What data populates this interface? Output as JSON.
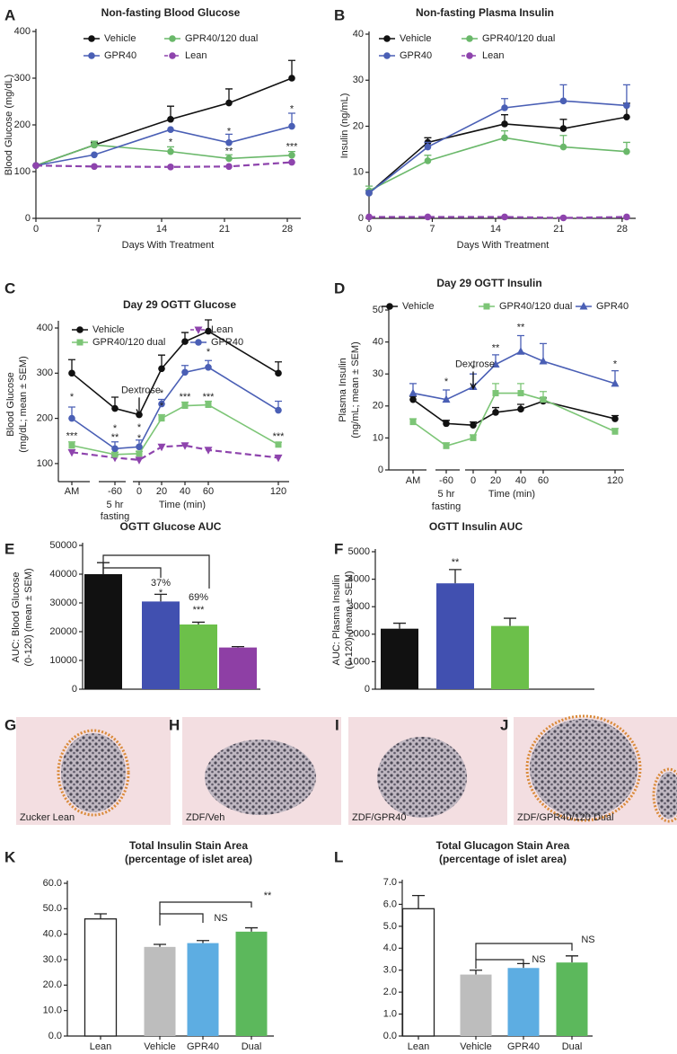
{
  "chart_data": [
    {
      "panel": "A",
      "type": "line",
      "title": "Non-fasting Blood Glucose",
      "xlabel": "Days With Treatment",
      "ylabel": [
        "Blood Glucose (mg/dL)"
      ],
      "xlim": [
        0,
        29.5
      ],
      "xticks": [
        0,
        7,
        14,
        21,
        28
      ],
      "ylim": [
        0,
        400
      ],
      "yticks": [
        0,
        100,
        200,
        300,
        400
      ],
      "x": [
        0,
        6.5,
        15,
        21.5,
        28.5
      ],
      "legend": {
        "position": "top-left",
        "columns": 2
      },
      "series": [
        {
          "name": "Vehicle",
          "color": "#111111",
          "marker": "circle",
          "dashed": false,
          "values": [
            113,
            157,
            212,
            247,
            300
          ],
          "errors": [
            null,
            5,
            28,
            30,
            38
          ]
        },
        {
          "name": "GPR40/120 dual",
          "color": "#6ab86a",
          "marker": "circle",
          "dashed": false,
          "values": [
            113,
            157,
            143,
            128,
            135
          ],
          "errors": [
            null,
            8,
            10,
            8,
            8
          ]
        },
        {
          "name": "GPR40",
          "color": "#4a5fb5",
          "marker": "circle",
          "dashed": false,
          "values": [
            113,
            136,
            190,
            162,
            197
          ],
          "errors": [
            null,
            null,
            null,
            18,
            28
          ]
        },
        {
          "name": "Lean",
          "color": "#8e44ad",
          "marker": "circle",
          "dashed": true,
          "values": [
            113,
            111,
            110,
            111,
            120
          ],
          "errors": [
            null,
            null,
            null,
            null,
            null
          ]
        }
      ],
      "annotations": [
        {
          "text": "*",
          "x": 15,
          "y": 162,
          "color": "#111111"
        },
        {
          "text": "*",
          "x": 21.5,
          "y": 185,
          "color": "#111111"
        },
        {
          "text": "**",
          "x": 21.5,
          "y": 143,
          "color": "#111111"
        },
        {
          "text": "*",
          "x": 28.5,
          "y": 233,
          "color": "#111111"
        },
        {
          "text": "***",
          "x": 28.5,
          "y": 153,
          "color": "#111111"
        }
      ]
    },
    {
      "panel": "B",
      "type": "line",
      "title": "Non-fasting Plasma Insulin",
      "xlabel": "Days With Treatment",
      "ylabel": [
        "Insulin (ng/mL)"
      ],
      "xlim": [
        0,
        29.5
      ],
      "xticks": [
        0,
        7,
        14,
        21,
        28
      ],
      "ylim": [
        0,
        40
      ],
      "yticks": [
        0,
        10,
        20,
        30,
        40
      ],
      "x": [
        0,
        6.5,
        15,
        21.5,
        28.5
      ],
      "legend": {
        "position": "top-left",
        "columns": 2
      },
      "series": [
        {
          "name": "Vehicle",
          "color": "#111111",
          "marker": "circle",
          "dashed": false,
          "values": [
            5.5,
            16.5,
            20.5,
            19.5,
            22
          ],
          "errors": [
            0.5,
            1,
            2,
            2,
            3
          ]
        },
        {
          "name": "GPR40/120 dual",
          "color": "#6ab86a",
          "marker": "circle",
          "dashed": false,
          "values": [
            6,
            12.5,
            17.5,
            15.5,
            14.5
          ],
          "errors": [
            1,
            1.2,
            1.5,
            2.5,
            2
          ]
        },
        {
          "name": "GPR40",
          "color": "#4a5fb5",
          "marker": "circle",
          "dashed": false,
          "values": [
            5.5,
            15.5,
            24,
            25.5,
            24.5
          ],
          "errors": [
            0.5,
            1,
            2,
            3.5,
            4.5
          ]
        },
        {
          "name": "Lean",
          "color": "#8e44ad",
          "marker": "circle",
          "dashed": true,
          "values": [
            0.3,
            0.3,
            0.3,
            0.1,
            0.3
          ],
          "errors": [
            null,
            null,
            null,
            null,
            null
          ]
        }
      ]
    },
    {
      "panel": "C",
      "type": "line",
      "title": "Day 29 OGTT Glucose",
      "xlabel": "Time (min)",
      "break_label": [
        "5 hr",
        "fasting"
      ],
      "ylabel": [
        "Blood Glucose",
        "(mg/dL; mean ± SEM)"
      ],
      "categories": [
        "AM",
        "-60",
        "0",
        "20",
        "40",
        "60",
        "120"
      ],
      "ylim": [
        60,
        410
      ],
      "yticks": [
        100,
        200,
        300,
        400
      ],
      "legend": {
        "position": "top-left",
        "columns": 2
      },
      "series": [
        {
          "name": "Vehicle",
          "color": "#111111",
          "marker": "circle",
          "dashed": false,
          "values": [
            300,
            222,
            208,
            310,
            370,
            393,
            300
          ],
          "errors": [
            30,
            25,
            null,
            30,
            20,
            25,
            25
          ]
        },
        {
          "name": "Lean",
          "color": "#8e44ad",
          "marker": "triangle-down",
          "dashed": true,
          "values": [
            125,
            113,
            108,
            137,
            140,
            130,
            113
          ],
          "errors": [
            null,
            null,
            null,
            null,
            null,
            null,
            null
          ]
        },
        {
          "name": "GPR40/120 dual",
          "color": "#7cc576",
          "marker": "square",
          "dashed": false,
          "values": [
            140,
            120,
            122,
            200,
            228,
            230,
            142
          ],
          "errors": [
            8,
            5,
            5,
            8,
            8,
            8,
            5
          ]
        },
        {
          "name": "GPR40",
          "color": "#4a5fb5",
          "marker": "circle",
          "dashed": false,
          "values": [
            200,
            133,
            137,
            232,
            302,
            313,
            218
          ],
          "errors": [
            25,
            15,
            15,
            10,
            15,
            15,
            20
          ]
        }
      ],
      "annotations": [
        {
          "text": "Dextrose",
          "x": "0",
          "y": 262,
          "color": "#111111",
          "arrow": true
        },
        {
          "text": "*",
          "x": "AM",
          "y": 247,
          "color": "#4a5fb5"
        },
        {
          "text": "***",
          "x": "AM",
          "y": 160,
          "color": "#7cc576"
        },
        {
          "text": "*",
          "x": "-60",
          "y": 177,
          "color": "#4a5fb5"
        },
        {
          "text": "**",
          "x": "-60",
          "y": 157,
          "color": "#7cc576"
        },
        {
          "text": "*",
          "x": "0",
          "y": 179,
          "color": "#4a5fb5"
        },
        {
          "text": "*",
          "x": "0",
          "y": 155,
          "color": "#7cc576"
        },
        {
          "text": "*",
          "x": "20",
          "y": 255,
          "color": "#4a5fb5"
        },
        {
          "text": "*",
          "x": "20",
          "y": 227,
          "color": "#7cc576"
        },
        {
          "text": "***",
          "x": "40",
          "y": 247,
          "color": "#7cc576"
        },
        {
          "text": "*",
          "x": "60",
          "y": 346,
          "color": "#4a5fb5"
        },
        {
          "text": "***",
          "x": "60",
          "y": 247,
          "color": "#7cc576"
        },
        {
          "text": "***",
          "x": "120",
          "y": 159,
          "color": "#7cc576"
        }
      ]
    },
    {
      "panel": "D",
      "type": "line",
      "title": "Day 29 OGTT Insulin",
      "xlabel": "Time (min)",
      "break_label": [
        "5 hr",
        "fasting"
      ],
      "ylabel": [
        "Plasma Insulin",
        "(ng/mL; mean ± SEM)"
      ],
      "categories": [
        "AM",
        "-60",
        "0",
        "20",
        "40",
        "60",
        "120"
      ],
      "ylim": [
        0,
        50
      ],
      "yticks": [
        0,
        10,
        20,
        30,
        40,
        50
      ],
      "legend": {
        "position": "top",
        "columns": 3
      },
      "series": [
        {
          "name": "Vehicle",
          "color": "#111111",
          "marker": "circle",
          "dashed": false,
          "values": [
            22,
            14.5,
            14,
            18,
            19,
            21.5,
            16
          ],
          "errors": [
            1,
            1,
            1,
            1.5,
            1.5,
            1,
            1
          ]
        },
        {
          "name": "GPR40/120 dual",
          "color": "#7cc576",
          "marker": "square",
          "dashed": false,
          "values": [
            15,
            7.5,
            10,
            24,
            24,
            22,
            12
          ],
          "errors": [
            1,
            1,
            1,
            3,
            3,
            2.5,
            1
          ]
        },
        {
          "name": "GPR40",
          "color": "#4a5fb5",
          "marker": "triangle",
          "dashed": false,
          "values": [
            24,
            22,
            26,
            33,
            37,
            34,
            27
          ],
          "errors": [
            3,
            3,
            4,
            3,
            5,
            5.5,
            4
          ]
        }
      ],
      "annotations": [
        {
          "text": "Dextrose",
          "x": "0",
          "y": 33,
          "color": "#111111",
          "arrow": true
        },
        {
          "text": "*",
          "x": "-60",
          "y": 27.5,
          "color": "#4a5fb5"
        },
        {
          "text": "*",
          "x": "0",
          "y": 31.5,
          "color": "#4a5fb5"
        },
        {
          "text": "**",
          "x": "20",
          "y": 38,
          "color": "#4a5fb5"
        },
        {
          "text": "**",
          "x": "40",
          "y": 44.5,
          "color": "#4a5fb5"
        },
        {
          "text": "*",
          "x": "120",
          "y": 33,
          "color": "#4a5fb5"
        }
      ]
    },
    {
      "panel": "E",
      "type": "bar",
      "title": "OGTT Glucose AUC",
      "ylabel": [
        "AUC: Blood Glucose",
        "(0-120) (mean ± SEM)"
      ],
      "ylim": [
        0,
        50000
      ],
      "yticks": [
        0,
        10000,
        20000,
        30000,
        40000,
        50000
      ],
      "values": [
        40000,
        30500,
        22500,
        14500
      ],
      "errors": [
        4000,
        2500,
        800,
        300
      ],
      "colors": [
        "#111111",
        "#4150b0",
        "#6cc04a",
        "#8e3fa5"
      ],
      "annotations": [
        "37%",
        "*",
        "69%",
        "***"
      ]
    },
    {
      "panel": "F",
      "type": "bar",
      "title": "OGTT Insulin AUC",
      "ylabel": [
        "AUC: Plasma Insulin",
        "(0-120) (mean ± SEM)"
      ],
      "ylim": [
        0,
        5000
      ],
      "yticks": [
        0,
        1000,
        2000,
        3000,
        4000,
        5000
      ],
      "values": [
        2200,
        3850,
        2300
      ],
      "errors": [
        200,
        500,
        280
      ],
      "colors": [
        "#111111",
        "#4150b0",
        "#6cc04a"
      ],
      "annotations": [
        "**"
      ]
    },
    {
      "panel": "K",
      "type": "bar",
      "title": [
        "Total Insulin Stain Area",
        "(percentage of islet area)"
      ],
      "ylim": [
        0,
        60
      ],
      "yticks": [
        {
          "value": 0,
          "label": "0.0"
        },
        {
          "value": 10,
          "label": "10.0"
        },
        {
          "value": 20,
          "label": "20.0"
        },
        {
          "value": 30,
          "label": "30.0"
        },
        {
          "value": 40,
          "label": "40.0"
        },
        {
          "value": 50,
          "label": "50.0"
        },
        {
          "value": 60,
          "label": "60.0"
        }
      ],
      "categories": [
        "Lean",
        "Vehicle",
        "GPR40",
        "Dual"
      ],
      "values": [
        46,
        35,
        36.5,
        41
      ],
      "errors": [
        2,
        1,
        1,
        1.5
      ],
      "colors": [
        "#ffffff",
        "#bdbdbd",
        "#5dade2",
        "#5cb85c"
      ],
      "annotations": [
        "NS",
        "**"
      ]
    },
    {
      "panel": "L",
      "type": "bar",
      "title": [
        "Total Glucagon Stain Area",
        "(percentage of islet area)"
      ],
      "ylim": [
        0,
        7
      ],
      "yticks": [
        {
          "value": 0,
          "label": "0.0"
        },
        {
          "value": 1,
          "label": "1.0"
        },
        {
          "value": 2,
          "label": "2.0"
        },
        {
          "value": 3,
          "label": "3.0"
        },
        {
          "value": 4,
          "label": "4.0"
        },
        {
          "value": 5,
          "label": "5.0"
        },
        {
          "value": 6,
          "label": "6.0"
        },
        {
          "value": 7,
          "label": "7.0"
        }
      ],
      "categories": [
        "Lean",
        "Vehicle",
        "GPR40",
        "Dual"
      ],
      "values": [
        5.8,
        2.8,
        3.1,
        3.35
      ],
      "errors": [
        0.6,
        0.2,
        0.2,
        0.3
      ],
      "colors": [
        "#ffffff",
        "#bdbdbd",
        "#5dade2",
        "#5cb85c"
      ],
      "annotations": [
        "NS",
        "NS"
      ]
    }
  ],
  "images": [
    {
      "panel": "G",
      "caption": "Zucker Lean"
    },
    {
      "panel": "H",
      "caption": "ZDF/Veh"
    },
    {
      "panel": "I",
      "caption": "ZDF/GPR40"
    },
    {
      "panel": "J",
      "caption": "ZDF/GPR40/120 Dual"
    }
  ]
}
